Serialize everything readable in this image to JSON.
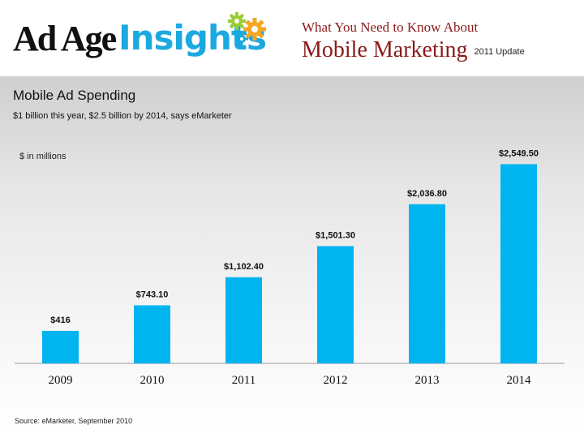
{
  "header": {
    "logo_primary": "Ad Age",
    "logo_secondary": "Insights",
    "subtitle": "What You Need to Know About",
    "title": "Mobile Marketing",
    "update": "2011 Update"
  },
  "slide": {
    "title": "Mobile Ad Spending",
    "subtitle": "$1 billion this year, $2.5 billion by 2014, says eMarketer",
    "unit_label": "$ in millions",
    "source": "Source: eMarketer, September 2010"
  },
  "colors": {
    "bar": "#00b4f0",
    "title": "#8b1a1a",
    "logo_blue": "#1ba9df"
  },
  "chart_data": {
    "type": "bar",
    "title": "Mobile Ad Spending",
    "ylabel": "$ in millions",
    "categories": [
      "2009",
      "2010",
      "2011",
      "2012",
      "2013",
      "2014"
    ],
    "values": [
      416,
      743.1,
      1102.4,
      1501.3,
      2036.8,
      2549.5
    ],
    "labels": [
      "$416",
      "$743.10",
      "$1,102.40",
      "$1,501.30",
      "$2,036.80",
      "$2,549.50"
    ],
    "ylim": [
      0,
      2720
    ],
    "grid": false
  }
}
